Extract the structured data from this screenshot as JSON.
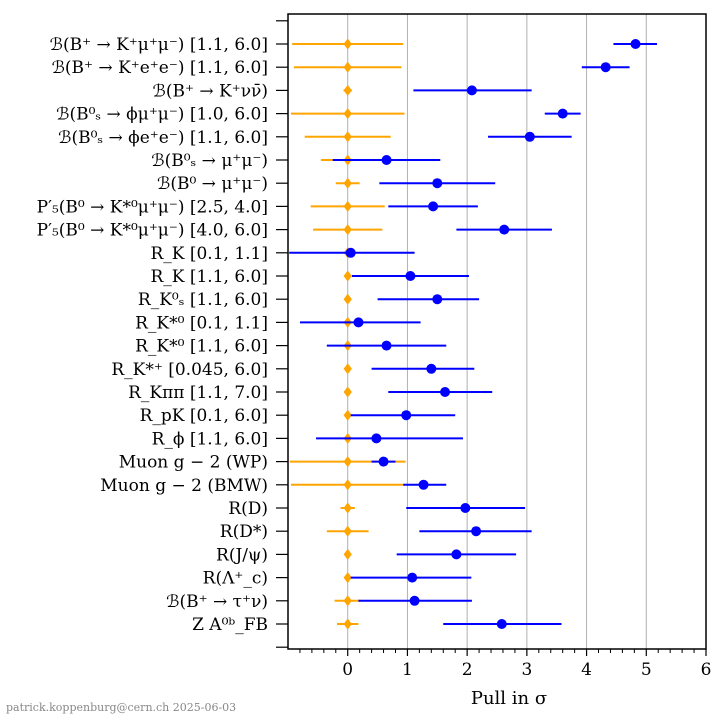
{
  "chart_data": {
    "type": "scatter",
    "xlabel": "Pull in σ",
    "xlim": [
      -1,
      6
    ],
    "xticks": [
      0,
      1,
      2,
      3,
      4,
      5,
      6
    ],
    "grid": "vertical",
    "colors": {
      "sm": "#ffa500",
      "measured": "#0000ff",
      "grid": "#b0b0b0"
    },
    "rows": [
      {
        "label": "ℬ(B⁺ → K⁺μ⁺μ⁻) [1.1, 6.0]",
        "sm": [
          0,
          -0.93,
          0.93
        ],
        "meas": [
          4.82,
          4.45,
          5.18
        ]
      },
      {
        "label": "ℬ(B⁺ → K⁺e⁺e⁻) [1.1, 6.0]",
        "sm": [
          0,
          -0.9,
          0.9
        ],
        "meas": [
          4.32,
          3.92,
          4.72
        ]
      },
      {
        "label": "ℬ(B⁺ → K⁺νν̄)",
        "sm": [
          0,
          -0.07,
          0.07
        ],
        "meas": [
          2.08,
          1.1,
          3.08
        ]
      },
      {
        "label": "ℬ(B⁰ₛ → ϕμ⁺μ⁻) [1.0, 6.0]",
        "sm": [
          0,
          -0.95,
          0.95
        ],
        "meas": [
          3.6,
          3.3,
          3.9
        ]
      },
      {
        "label": "ℬ(B⁰ₛ → ϕe⁺e⁻) [1.1, 6.0]",
        "sm": [
          0,
          -0.72,
          0.72
        ],
        "meas": [
          3.05,
          2.35,
          3.75
        ]
      },
      {
        "label": "ℬ(B⁰ₛ → μ⁺μ⁻)",
        "sm": [
          0,
          -0.45,
          0.45
        ],
        "meas": [
          0.65,
          -0.25,
          1.55
        ]
      },
      {
        "label": "ℬ(B⁰ → μ⁺μ⁻)",
        "sm": [
          0,
          -0.2,
          0.2
        ],
        "meas": [
          1.5,
          0.53,
          2.47
        ]
      },
      {
        "label": "P′₅(B⁰ → K*⁰μ⁺μ⁻) [2.5, 4.0]",
        "sm": [
          0,
          -0.62,
          0.62
        ],
        "meas": [
          1.43,
          0.68,
          2.18
        ]
      },
      {
        "label": "P′₅(B⁰ → K*⁰μ⁺μ⁻) [4.0, 6.0]",
        "sm": [
          0,
          -0.58,
          0.58
        ],
        "meas": [
          2.62,
          1.82,
          3.42
        ]
      },
      {
        "label": "R_K [0.1, 1.1]",
        "sm": [
          0,
          -0.04,
          0.04
        ],
        "meas": [
          0.05,
          -0.98,
          1.12
        ]
      },
      {
        "label": "R_K [1.1, 6.0]",
        "sm": [
          0,
          -0.03,
          0.03
        ],
        "meas": [
          1.05,
          0.07,
          2.03
        ]
      },
      {
        "label": "R_K⁰ₛ [1.1, 6.0]",
        "sm": [
          0,
          -0.03,
          0.03
        ],
        "meas": [
          1.5,
          0.5,
          2.2
        ]
      },
      {
        "label": "R_K*⁰ [0.1, 1.1]",
        "sm": [
          0,
          -0.04,
          0.04
        ],
        "meas": [
          0.18,
          -0.8,
          1.22
        ]
      },
      {
        "label": "R_K*⁰ [1.1, 6.0]",
        "sm": [
          0,
          -0.03,
          0.03
        ],
        "meas": [
          0.65,
          -0.35,
          1.65
        ]
      },
      {
        "label": "R_K*⁺ [0.045, 6.0]",
        "sm": [
          0,
          -0.03,
          0.03
        ],
        "meas": [
          1.4,
          0.4,
          2.12
        ]
      },
      {
        "label": "R_Kππ [1.1, 7.0]",
        "sm": [
          0,
          -0.03,
          0.03
        ],
        "meas": [
          1.63,
          0.68,
          2.42
        ]
      },
      {
        "label": "R_pK [0.1, 6.0]",
        "sm": [
          0,
          -0.03,
          0.03
        ],
        "meas": [
          0.98,
          0.05,
          1.8
        ]
      },
      {
        "label": "R_ϕ [1.1, 6.0]",
        "sm": [
          0,
          -0.03,
          0.03
        ],
        "meas": [
          0.48,
          -0.53,
          1.93
        ]
      },
      {
        "label": "Muon g − 2 (WP)",
        "sm": [
          0,
          -0.97,
          0.97
        ],
        "meas": [
          0.6,
          0.4,
          0.8
        ]
      },
      {
        "label": "Muon g − 2 (BMW)",
        "sm": [
          0,
          -0.95,
          0.95
        ],
        "meas": [
          1.27,
          0.93,
          1.65
        ]
      },
      {
        "label": "R(D)",
        "sm": [
          0,
          -0.12,
          0.12
        ],
        "meas": [
          1.97,
          0.98,
          2.97
        ]
      },
      {
        "label": "R(D*)",
        "sm": [
          0,
          -0.35,
          0.35
        ],
        "meas": [
          2.15,
          1.2,
          3.08
        ]
      },
      {
        "label": "R(J/ψ)",
        "sm": [
          0,
          -0.03,
          0.03
        ],
        "meas": [
          1.82,
          0.82,
          2.82
        ]
      },
      {
        "label": "R(Λ⁺_c)",
        "sm": [
          0,
          -0.03,
          0.03
        ],
        "meas": [
          1.08,
          0.05,
          2.07
        ]
      },
      {
        "label": "ℬ(B⁺ → τ⁺ν)",
        "sm": [
          0,
          -0.22,
          0.22
        ],
        "meas": [
          1.12,
          0.18,
          2.08
        ]
      },
      {
        "label": "Z A⁰ᵇ_FB",
        "sm": [
          0,
          -0.18,
          0.18
        ],
        "meas": [
          2.58,
          1.6,
          3.58
        ]
      }
    ]
  },
  "credit": "patrick.koppenburg@cern.ch 2025-06-03"
}
